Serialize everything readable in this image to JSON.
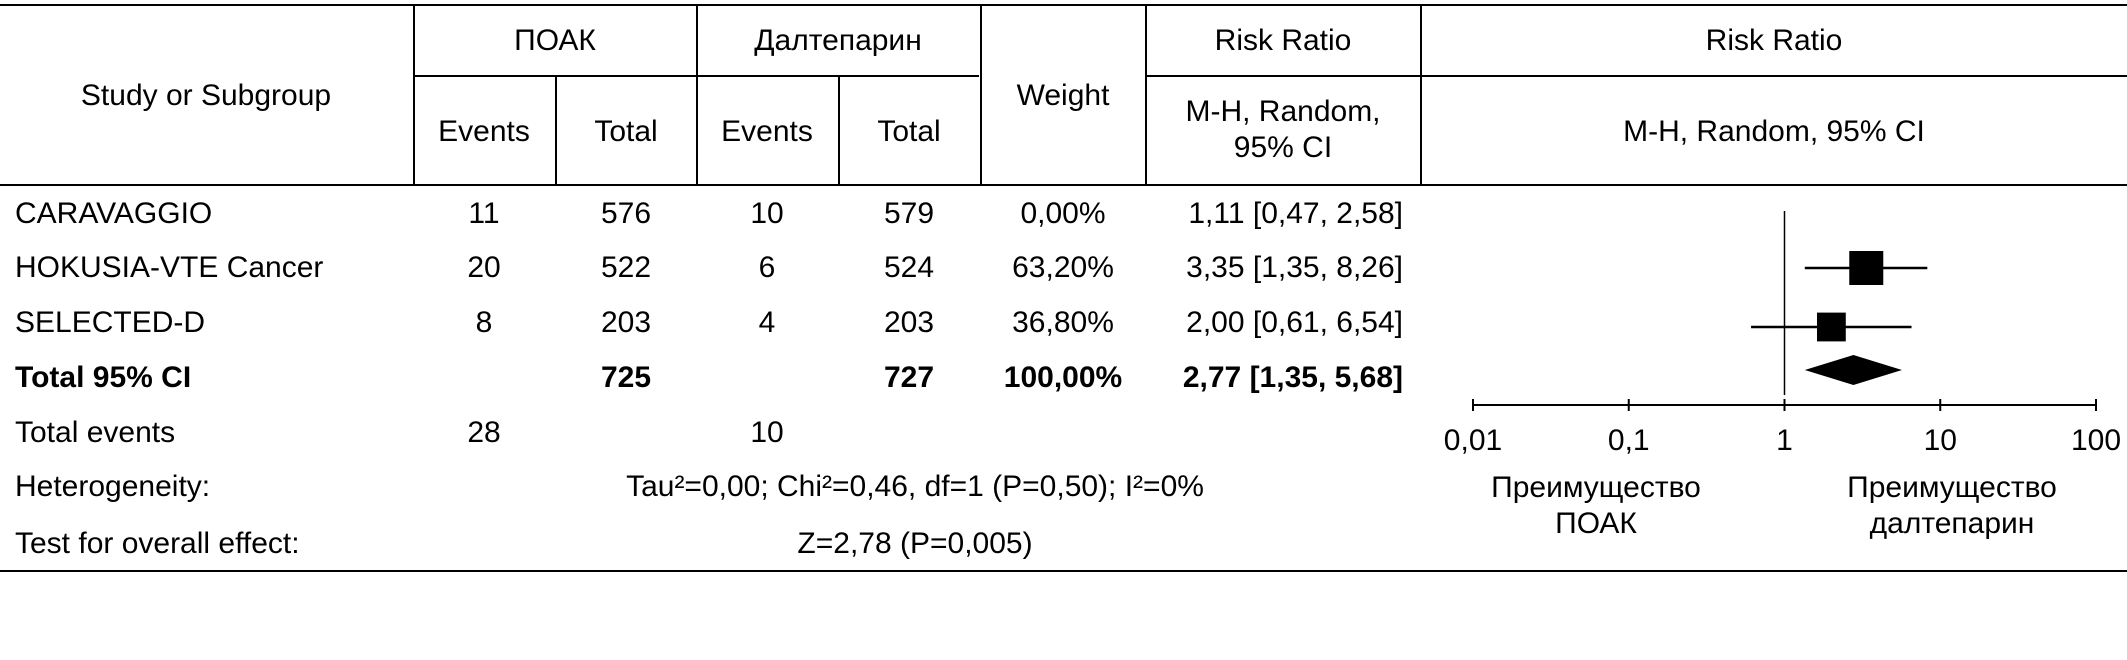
{
  "header": {
    "study": "Study or Subgroup",
    "group1": "ПОАК",
    "group2": "Далтепарин",
    "events": "Events",
    "total": "Total",
    "weight": "Weight",
    "rr": "Risk Ratio",
    "rr_method_short": "M-H, Random, 95% CI",
    "plot_title": "Risk Ratio",
    "plot_method": "M-H, Random, 95% CI"
  },
  "studies": [
    {
      "name": "CARAVAGGIO",
      "e1": "11",
      "t1": "576",
      "e2": "10",
      "t2": "579",
      "weight": "0,00%",
      "rr": "1,11 [0,47, 2,58]"
    },
    {
      "name": "HOKUSIA-VTE Cancer",
      "e1": "20",
      "t1": "522",
      "e2": "6",
      "t2": "524",
      "weight": "63,20%",
      "rr": "3,35 [1,35, 8,26]"
    },
    {
      "name": "SELECTED-D",
      "e1": "8",
      "t1": "203",
      "e2": "4",
      "t2": "203",
      "weight": "36,80%",
      "rr": "2,00 [0,61, 6,54]"
    }
  ],
  "total": {
    "name": "Total 95% CI",
    "t1": "725",
    "t2": "727",
    "weight": "100,00%",
    "rr": "2,77 [1,35, 5,68]"
  },
  "events": {
    "label": "Total events",
    "e1": "28",
    "e2": "10"
  },
  "heterogeneity": {
    "label": "Heterogeneity:",
    "value": "Tau²=0,00; Chi²=0,46, df=1 (P=0,50); I²=0%"
  },
  "overall": {
    "label": "Test for overall effect:",
    "value": "Z=2,78 (P=0,005)"
  },
  "chart_data": {
    "type": "forest",
    "scale": "log",
    "xlim": [
      0.01,
      100
    ],
    "ticks": [
      0.01,
      0.1,
      1,
      10,
      100
    ],
    "tick_labels": [
      "0,01",
      "0,1",
      "1",
      "10",
      "100"
    ],
    "null_value": 1,
    "favours_left": "Преимущество ПОАК",
    "favours_right": "Преимущество далтепарин",
    "points": [
      {
        "study": "HOKUSIA-VTE Cancer",
        "rr": 3.35,
        "lo": 1.35,
        "hi": 8.26,
        "weight": 63.2
      },
      {
        "study": "SELECTED-D",
        "rr": 2.0,
        "lo": 0.61,
        "hi": 6.54,
        "weight": 36.8
      }
    ],
    "pooled": {
      "rr": 2.77,
      "lo": 1.35,
      "hi": 5.68
    }
  }
}
